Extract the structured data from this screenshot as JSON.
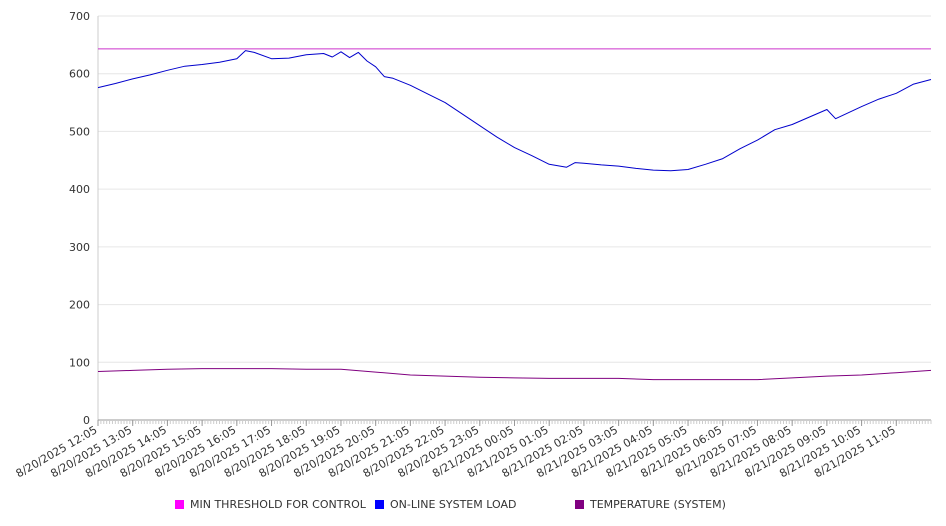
{
  "chart_data": {
    "type": "line",
    "title": "",
    "xlabel": "",
    "ylabel": "",
    "ylim": [
      0,
      700
    ],
    "yticks": [
      0,
      100,
      200,
      300,
      400,
      500,
      600,
      700
    ],
    "x_start": "8/20/2025 12:05",
    "x_end": "8/21/2025 12:05",
    "xtick_labels": [
      "8/20/2025 12:05",
      "8/20/2025 13:05",
      "8/20/2025 14:05",
      "8/20/2025 15:05",
      "8/20/2025 16:05",
      "8/20/2025 17:05",
      "8/20/2025 18:05",
      "8/20/2025 19:05",
      "8/20/2025 20:05",
      "8/20/2025 21:05",
      "8/20/2025 22:05",
      "8/20/2025 23:05",
      "8/21/2025 00:05",
      "8/21/2025 01:05",
      "8/21/2025 02:05",
      "8/21/2025 03:05",
      "8/21/2025 04:05",
      "8/21/2025 05:05",
      "8/21/2025 06:05",
      "8/21/2025 07:05",
      "8/21/2025 08:05",
      "8/21/2025 09:05",
      "8/21/2025 10:05",
      "8/21/2025 11:05"
    ],
    "grid": true,
    "legend_position": "bottom",
    "series": [
      {
        "name": "MIN THRESHOLD FOR CONTROL",
        "color": "#cc33cc",
        "legend_color": "#ff00ff",
        "x": [
          "8/20/2025 12:05",
          "8/21/2025 12:05"
        ],
        "values": [
          643,
          643
        ]
      },
      {
        "name": "ON-LINE SYSTEM LOAD",
        "color": "#0000cc",
        "legend_color": "#0000ff",
        "x": [
          "8/20/2025 12:05",
          "8/20/2025 12:35",
          "8/20/2025 13:05",
          "8/20/2025 13:35",
          "8/20/2025 14:05",
          "8/20/2025 14:35",
          "8/20/2025 15:05",
          "8/20/2025 15:35",
          "8/20/2025 16:05",
          "8/20/2025 16:20",
          "8/20/2025 16:35",
          "8/20/2025 17:05",
          "8/20/2025 17:35",
          "8/20/2025 18:05",
          "8/20/2025 18:35",
          "8/20/2025 18:50",
          "8/20/2025 19:05",
          "8/20/2025 19:20",
          "8/20/2025 19:35",
          "8/20/2025 19:50",
          "8/20/2025 20:05",
          "8/20/2025 20:20",
          "8/20/2025 20:35",
          "8/20/2025 21:05",
          "8/20/2025 21:35",
          "8/20/2025 22:05",
          "8/20/2025 22:35",
          "8/20/2025 23:05",
          "8/20/2025 23:35",
          "8/21/2025 00:05",
          "8/21/2025 00:35",
          "8/21/2025 01:05",
          "8/21/2025 01:35",
          "8/21/2025 01:50",
          "8/21/2025 02:05",
          "8/21/2025 02:35",
          "8/21/2025 03:05",
          "8/21/2025 03:35",
          "8/21/2025 04:05",
          "8/21/2025 04:35",
          "8/21/2025 05:05",
          "8/21/2025 05:35",
          "8/21/2025 06:05",
          "8/21/2025 06:35",
          "8/21/2025 07:05",
          "8/21/2025 07:35",
          "8/21/2025 08:05",
          "8/21/2025 08:35",
          "8/21/2025 09:05",
          "8/21/2025 09:20",
          "8/21/2025 09:35",
          "8/21/2025 10:05",
          "8/21/2025 10:35",
          "8/21/2025 11:05",
          "8/21/2025 11:35",
          "8/21/2025 12:05"
        ],
        "values": [
          576,
          583,
          591,
          598,
          606,
          613,
          616,
          620,
          626,
          640,
          637,
          626,
          627,
          633,
          635,
          629,
          638,
          628,
          637,
          622,
          612,
          595,
          592,
          580,
          565,
          550,
          530,
          510,
          490,
          472,
          458,
          443,
          438,
          446,
          445,
          442,
          440,
          436,
          433,
          432,
          434,
          443,
          453,
          470,
          485,
          503,
          512,
          525,
          538,
          522,
          529,
          543,
          556,
          566,
          582,
          590
        ]
      },
      {
        "name": "TEMPERATURE (SYSTEM)",
        "color": "#800080",
        "legend_color": "#800080",
        "x": [
          "8/20/2025 12:05",
          "8/20/2025 13:05",
          "8/20/2025 14:05",
          "8/20/2025 15:05",
          "8/20/2025 16:05",
          "8/20/2025 17:05",
          "8/20/2025 18:05",
          "8/20/2025 19:05",
          "8/20/2025 20:05",
          "8/20/2025 21:05",
          "8/20/2025 22:05",
          "8/20/2025 23:05",
          "8/21/2025 00:05",
          "8/21/2025 01:05",
          "8/21/2025 02:05",
          "8/21/2025 03:05",
          "8/21/2025 04:05",
          "8/21/2025 05:05",
          "8/21/2025 06:05",
          "8/21/2025 07:05",
          "8/21/2025 08:05",
          "8/21/2025 09:05",
          "8/21/2025 10:05",
          "8/21/2025 11:05",
          "8/21/2025 12:05"
        ],
        "values": [
          84,
          86,
          88,
          89,
          89,
          89,
          88,
          88,
          83,
          78,
          76,
          74,
          73,
          72,
          72,
          72,
          70,
          70,
          70,
          70,
          73,
          76,
          78,
          82,
          86
        ]
      }
    ]
  }
}
